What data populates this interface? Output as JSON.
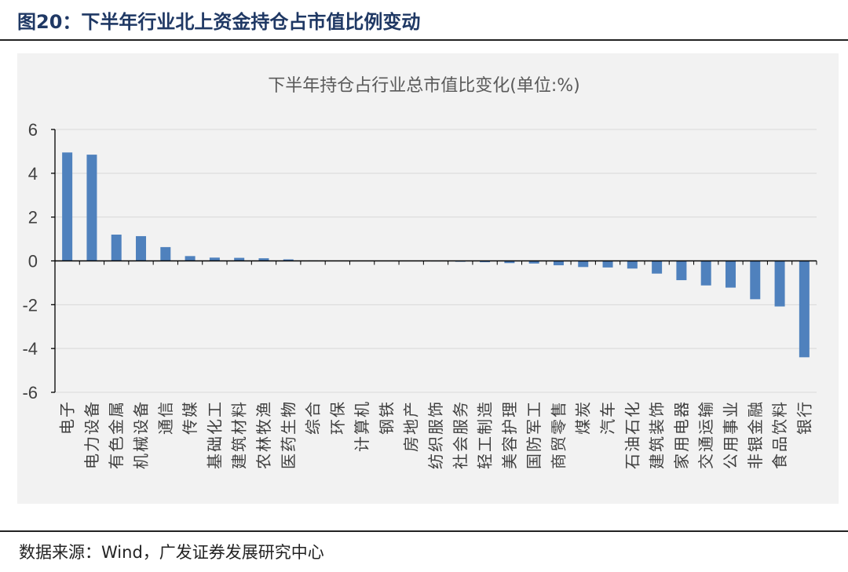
{
  "header": {
    "title": "图20：下半年行业北上资金持仓占市值比例变动"
  },
  "footer": {
    "source": "数据来源：Wind，广发证券发展研究中心"
  },
  "chart_data": {
    "type": "bar",
    "title": "下半年持仓占行业总市值比变化(单位:%)",
    "xlabel": "",
    "ylabel": "",
    "ylim": [
      -6,
      6
    ],
    "yticks": [
      6,
      4,
      2,
      0,
      -2,
      -4,
      -6
    ],
    "grid": true,
    "legend": "none",
    "bar_color": "#4f81bd",
    "categories": [
      "电子",
      "电力设备",
      "有色金属",
      "机械设备",
      "通信",
      "传媒",
      "基础化工",
      "建筑材料",
      "农林牧渔",
      "医药生物",
      "综合",
      "环保",
      "计算机",
      "钢铁",
      "房地产",
      "纺织服饰",
      "社会服务",
      "轻工制造",
      "美容护理",
      "国防军工",
      "商贸零售",
      "煤炭",
      "汽车",
      "石油石化",
      "建筑装饰",
      "家用电器",
      "交通运输",
      "公用事业",
      "非银金融",
      "食品饮料",
      "银行"
    ],
    "values": [
      4.95,
      4.85,
      1.2,
      1.13,
      0.63,
      0.22,
      0.15,
      0.14,
      0.12,
      0.07,
      0.02,
      0.01,
      0.0,
      0.0,
      -0.01,
      -0.02,
      -0.04,
      -0.06,
      -0.1,
      -0.12,
      -0.2,
      -0.28,
      -0.3,
      -0.35,
      -0.58,
      -0.88,
      -1.12,
      -1.22,
      -1.75,
      -2.08,
      -4.4
    ]
  }
}
